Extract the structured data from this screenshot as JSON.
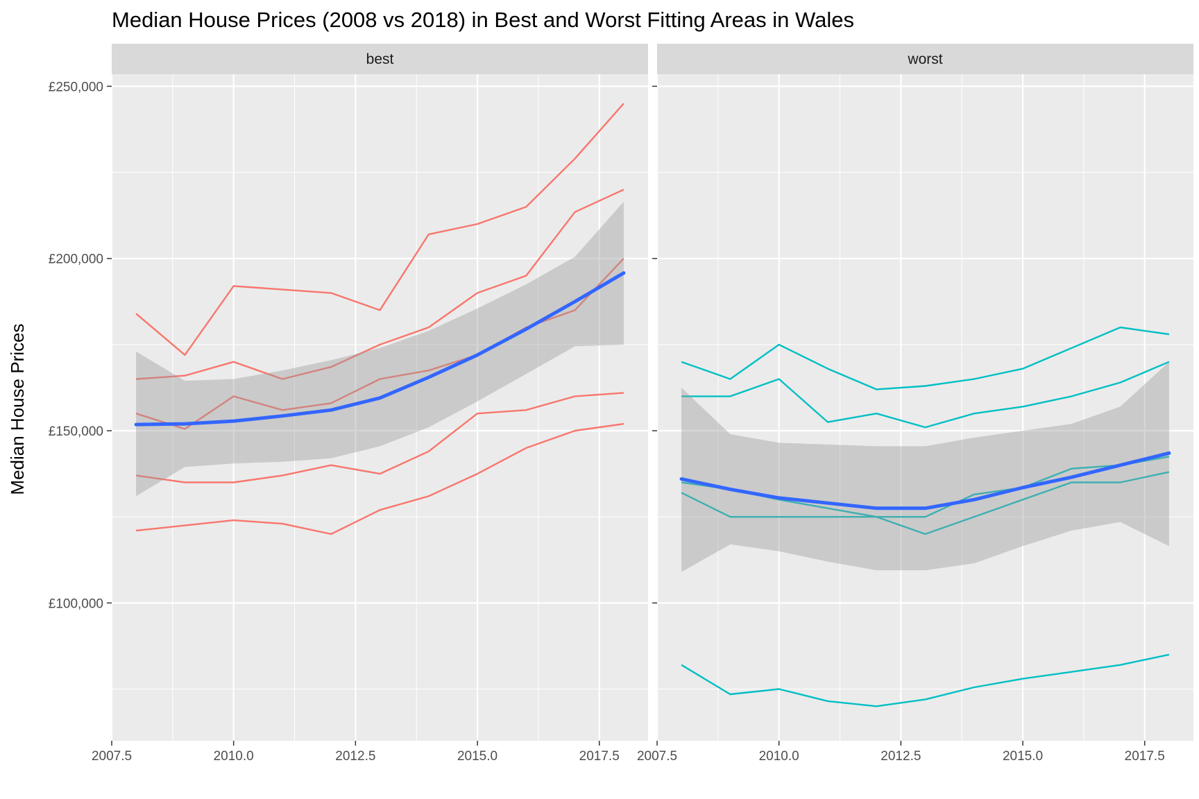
{
  "chart_data": {
    "type": "line",
    "title": "Median House Prices (2008 vs 2018) in Best and Worst Fitting Areas in Wales",
    "xlabel": "",
    "ylabel": "Median House Prices",
    "xlim": [
      2007.5,
      2018.5
    ],
    "ylim": [
      60000,
      253500
    ],
    "x_ticks": [
      2007.5,
      2010.0,
      2012.5,
      2015.0,
      2017.5
    ],
    "x_tick_labels": [
      "2007.5",
      "2010.0",
      "2012.5",
      "2015.0",
      "2017.5"
    ],
    "y_ticks": [
      100000,
      150000,
      200000,
      250000
    ],
    "y_tick_labels": [
      "£100,000",
      "£150,000",
      "£200,000",
      "£250,000"
    ],
    "grid": true,
    "legend": "none",
    "colors": {
      "best": "#F8766D",
      "worst": "#00BFC4",
      "smooth": "#3366FF",
      "ribbon": "#999999",
      "panel_bg": "#EBEBEB",
      "strip_bg": "#D9D9D9",
      "grid": "#FFFFFF"
    },
    "facets": [
      {
        "label": "best",
        "series": [
          {
            "x": [
              2008,
              2009,
              2010,
              2011,
              2012,
              2013,
              2014,
              2015,
              2016,
              2017,
              2018
            ],
            "values": [
              184000,
              172000,
              192000,
              191000,
              190000,
              185000,
              207000,
              210000,
              215000,
              229000,
              245000
            ]
          },
          {
            "x": [
              2008,
              2009,
              2010,
              2011,
              2012,
              2013,
              2014,
              2015,
              2016,
              2017,
              2018
            ],
            "values": [
              165000,
              166000,
              170000,
              165000,
              168500,
              175000,
              180000,
              190000,
              195000,
              213500,
              220000
            ]
          },
          {
            "x": [
              2008,
              2009,
              2010,
              2011,
              2012,
              2013,
              2014,
              2015,
              2016,
              2017,
              2018
            ],
            "values": [
              155000,
              150500,
              160000,
              156000,
              158000,
              165000,
              167500,
              172000,
              180000,
              185000,
              200000
            ]
          },
          {
            "x": [
              2008,
              2009,
              2010,
              2011,
              2012,
              2013,
              2014,
              2015,
              2016,
              2017,
              2018
            ],
            "values": [
              137000,
              135000,
              135000,
              137000,
              140000,
              137500,
              144000,
              155000,
              156000,
              160000,
              161000
            ]
          },
          {
            "x": [
              2008,
              2009,
              2010,
              2011,
              2012,
              2013,
              2014,
              2015,
              2016,
              2017,
              2018
            ],
            "values": [
              121000,
              122500,
              124000,
              123000,
              120000,
              127000,
              131000,
              137500,
              145000,
              150000,
              152000
            ]
          }
        ],
        "smooth": {
          "x": [
            2008,
            2009,
            2010,
            2011,
            2012,
            2013,
            2014,
            2015,
            2016,
            2017,
            2018
          ],
          "values": [
            151800,
            152000,
            152800,
            154300,
            156000,
            159500,
            165500,
            172000,
            179500,
            187500,
            195800
          ],
          "lower": [
            131000,
            139500,
            140500,
            141000,
            142000,
            145500,
            151000,
            158500,
            166500,
            174500,
            175000
          ],
          "upper": [
            173000,
            164500,
            165000,
            167500,
            170500,
            174000,
            179000,
            185500,
            192500,
            200500,
            216500
          ]
        }
      },
      {
        "label": "worst",
        "series": [
          {
            "x": [
              2008,
              2009,
              2010,
              2011,
              2012,
              2013,
              2014,
              2015,
              2016,
              2017,
              2018
            ],
            "values": [
              170000,
              165000,
              175000,
              168000,
              162000,
              163000,
              165000,
              168000,
              174000,
              180000,
              178000
            ]
          },
          {
            "x": [
              2008,
              2009,
              2010,
              2011,
              2012,
              2013,
              2014,
              2015,
              2016,
              2017,
              2018
            ],
            "values": [
              160000,
              160000,
              165000,
              152500,
              155000,
              151000,
              155000,
              157000,
              160000,
              164000,
              170000
            ]
          },
          {
            "x": [
              2008,
              2009,
              2010,
              2011,
              2012,
              2013,
              2014,
              2015,
              2016,
              2017,
              2018
            ],
            "values": [
              135000,
              133000,
              130000,
              127500,
              125000,
              125000,
              131500,
              133500,
              139000,
              140000,
              142500
            ]
          },
          {
            "x": [
              2008,
              2009,
              2010,
              2011,
              2012,
              2013,
              2014,
              2015,
              2016,
              2017,
              2018
            ],
            "values": [
              132000,
              125000,
              125000,
              125000,
              125000,
              120000,
              125000,
              130000,
              135000,
              135000,
              138000
            ]
          },
          {
            "x": [
              2008,
              2009,
              2010,
              2011,
              2012,
              2013,
              2014,
              2015,
              2016,
              2017,
              2018
            ],
            "values": [
              82000,
              73500,
              75000,
              71500,
              70000,
              72000,
              75500,
              78000,
              80000,
              82000,
              85000
            ]
          }
        ],
        "smooth": {
          "x": [
            2008,
            2009,
            2010,
            2011,
            2012,
            2013,
            2014,
            2015,
            2016,
            2017,
            2018
          ],
          "values": [
            136000,
            133000,
            130500,
            129000,
            127500,
            127500,
            130000,
            133500,
            136500,
            140000,
            143500
          ],
          "lower": [
            109000,
            117000,
            115000,
            112000,
            109500,
            109500,
            111500,
            116500,
            121000,
            123500,
            116500
          ],
          "upper": [
            162500,
            149000,
            146500,
            146000,
            145500,
            145500,
            148000,
            150000,
            152000,
            157000,
            170000
          ]
        }
      }
    ]
  }
}
